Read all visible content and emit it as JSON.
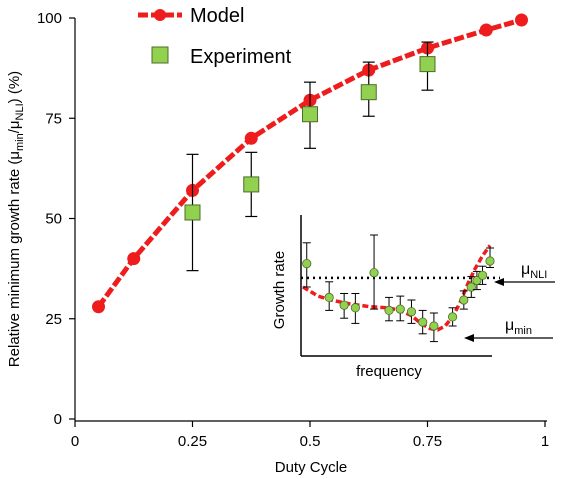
{
  "chart_data": [
    {
      "type": "line",
      "xlabel": "Duty Cycle",
      "ylabel_main": "Relative minimum growth rate (μ",
      "ylabel_sub1": "min",
      "ylabel_mid": "/μ",
      "ylabel_sub2": "NLI",
      "ylabel_end": ") (%)",
      "xlim": [
        0,
        1
      ],
      "ylim": [
        0,
        100
      ],
      "x_ticks": [
        "0",
        "0.25",
        "0.5",
        "0.75",
        "1"
      ],
      "y_ticks": [
        "0",
        "25",
        "50",
        "75",
        "100"
      ],
      "x_tick_values": [
        0,
        0.25,
        0.5,
        0.75,
        1
      ],
      "y_tick_values": [
        0,
        25,
        50,
        75,
        100
      ],
      "legend_placement": "top-center",
      "grid": false,
      "series": [
        {
          "name": "Model",
          "color": "#ee1c1c",
          "marker": "circle",
          "x": [
            0.05,
            0.125,
            0.25,
            0.375,
            0.5,
            0.625,
            0.75,
            0.875,
            0.95
          ],
          "y": [
            28,
            40,
            57,
            70,
            79.5,
            87,
            92.5,
            97,
            99.5
          ]
        },
        {
          "name": "Experiment",
          "color": "#92d050",
          "marker": "square",
          "x": [
            0.25,
            0.375,
            0.5,
            0.625,
            0.75
          ],
          "y": [
            51.5,
            58.5,
            76,
            81.5,
            88.5
          ],
          "err_low": [
            37,
            50.5,
            67.5,
            75.5,
            82
          ],
          "err_high": [
            66,
            66.5,
            84,
            89,
            94
          ]
        }
      ]
    },
    {
      "type": "scatter",
      "inset": true,
      "xlabel": "frequency",
      "ylabel": "Growth rate",
      "annotations": {
        "nli_base": "μ",
        "nli_sub": "NLI",
        "min_base": "μ",
        "min_sub": "min"
      },
      "xlim": [
        0,
        1
      ],
      "ylim": [
        0,
        1
      ],
      "nli_level": 0.57,
      "curve": {
        "color": "#ee1c1c",
        "x": [
          0,
          0.08,
          0.15,
          0.25,
          0.35,
          0.45,
          0.52,
          0.58,
          0.63,
          0.68,
          0.72,
          0.76,
          0.8,
          0.84,
          0.88,
          0.92,
          0.96,
          1
        ],
        "y": [
          0.5,
          0.43,
          0.4,
          0.37,
          0.35,
          0.34,
          0.32,
          0.28,
          0.22,
          0.18,
          0.17,
          0.2,
          0.27,
          0.38,
          0.52,
          0.64,
          0.74,
          0.82
        ]
      },
      "points": {
        "color": "#92d050",
        "x": [
          0.02,
          0.14,
          0.22,
          0.28,
          0.38,
          0.46,
          0.52,
          0.58,
          0.64,
          0.7,
          0.8,
          0.86,
          0.9,
          0.93,
          0.96,
          1.0
        ],
        "y": [
          0.68,
          0.42,
          0.36,
          0.34,
          0.61,
          0.32,
          0.33,
          0.31,
          0.23,
          0.2,
          0.27,
          0.4,
          0.5,
          0.55,
          0.59,
          0.7
        ],
        "err_low": [
          0.5,
          0.32,
          0.26,
          0.22,
          0.33,
          0.24,
          0.24,
          0.22,
          0.14,
          0.08,
          0.2,
          0.33,
          0.42,
          0.48,
          0.52,
          0.65
        ],
        "err_high": [
          0.84,
          0.54,
          0.45,
          0.45,
          0.9,
          0.42,
          0.43,
          0.4,
          0.32,
          0.3,
          0.34,
          0.47,
          0.58,
          0.62,
          0.66,
          0.8
        ]
      }
    }
  ]
}
